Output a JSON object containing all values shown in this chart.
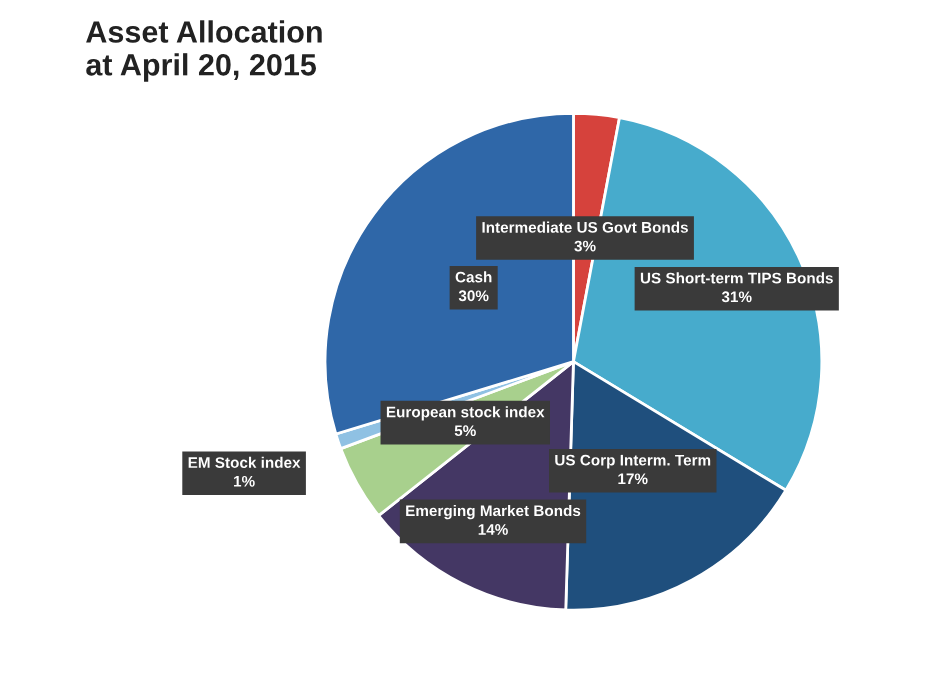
{
  "chart_data": {
    "type": "pie",
    "title": "Asset Allocation\nat April 20, 2015",
    "categories": [
      "Intermediate US Govt Bonds",
      "US Short-term TIPS Bonds",
      "US Corp Interm. Term",
      "Emerging Market Bonds",
      "European stock index",
      "EM Stock index",
      "Cash"
    ],
    "values": [
      3,
      31,
      17,
      14,
      5,
      1,
      30
    ],
    "value_labels": [
      "3%",
      "31%",
      "17%",
      "14%",
      "5%",
      "1%",
      "30%"
    ],
    "colors": [
      "#d6423c",
      "#47abcc",
      "#1f4f7d",
      "#443764",
      "#a8d08d",
      "#8fc1e3",
      "#2f67a8"
    ],
    "legend": false
  }
}
